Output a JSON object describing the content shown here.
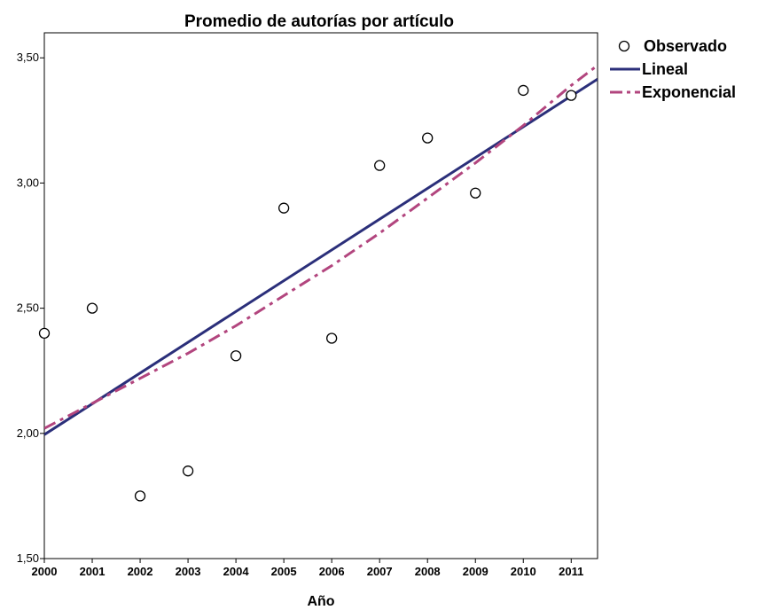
{
  "chart_data": {
    "type": "scatter",
    "title": "Promedio de autorías por artículo",
    "xlabel": "Año",
    "ylabel": "",
    "x": [
      2000,
      2001,
      2002,
      2003,
      2004,
      2005,
      2006,
      2007,
      2008,
      2009,
      2010,
      2011
    ],
    "x_tick_labels": [
      "2000",
      "2001",
      "2002",
      "2003",
      "2004",
      "2005",
      "2006",
      "2007",
      "2008",
      "2009",
      "2010",
      "2011"
    ],
    "xlim": [
      2000,
      2011.55
    ],
    "ylim": [
      1.5,
      3.6
    ],
    "y_ticks": [
      1.5,
      2.0,
      2.5,
      3.0,
      3.5
    ],
    "y_tick_labels": [
      "1,50",
      "2,00",
      "2,50",
      "3,00",
      "3,50"
    ],
    "grid": false,
    "legend_position": "right",
    "series": [
      {
        "name": "Observado",
        "kind": "points",
        "marker": "open-circle",
        "color": "#000000",
        "values": [
          2.4,
          2.5,
          1.75,
          1.85,
          2.31,
          2.9,
          2.38,
          3.07,
          3.18,
          2.96,
          3.37,
          3.35
        ]
      },
      {
        "name": "Lineal",
        "kind": "line",
        "style": "solid",
        "color": "#2b2f7a",
        "x": [
          2000,
          2011.55
        ],
        "values": [
          1.995,
          3.415
        ]
      },
      {
        "name": "Exponencial",
        "kind": "line",
        "style": "dash-dot",
        "color": "#b2457e",
        "x": [
          2000,
          2001,
          2002,
          2003,
          2004,
          2005,
          2006,
          2007,
          2008,
          2009,
          2010,
          2011,
          2011.55
        ],
        "values": [
          2.02,
          2.12,
          2.22,
          2.32,
          2.43,
          2.55,
          2.67,
          2.8,
          2.94,
          3.08,
          3.23,
          3.39,
          3.47
        ]
      }
    ]
  }
}
